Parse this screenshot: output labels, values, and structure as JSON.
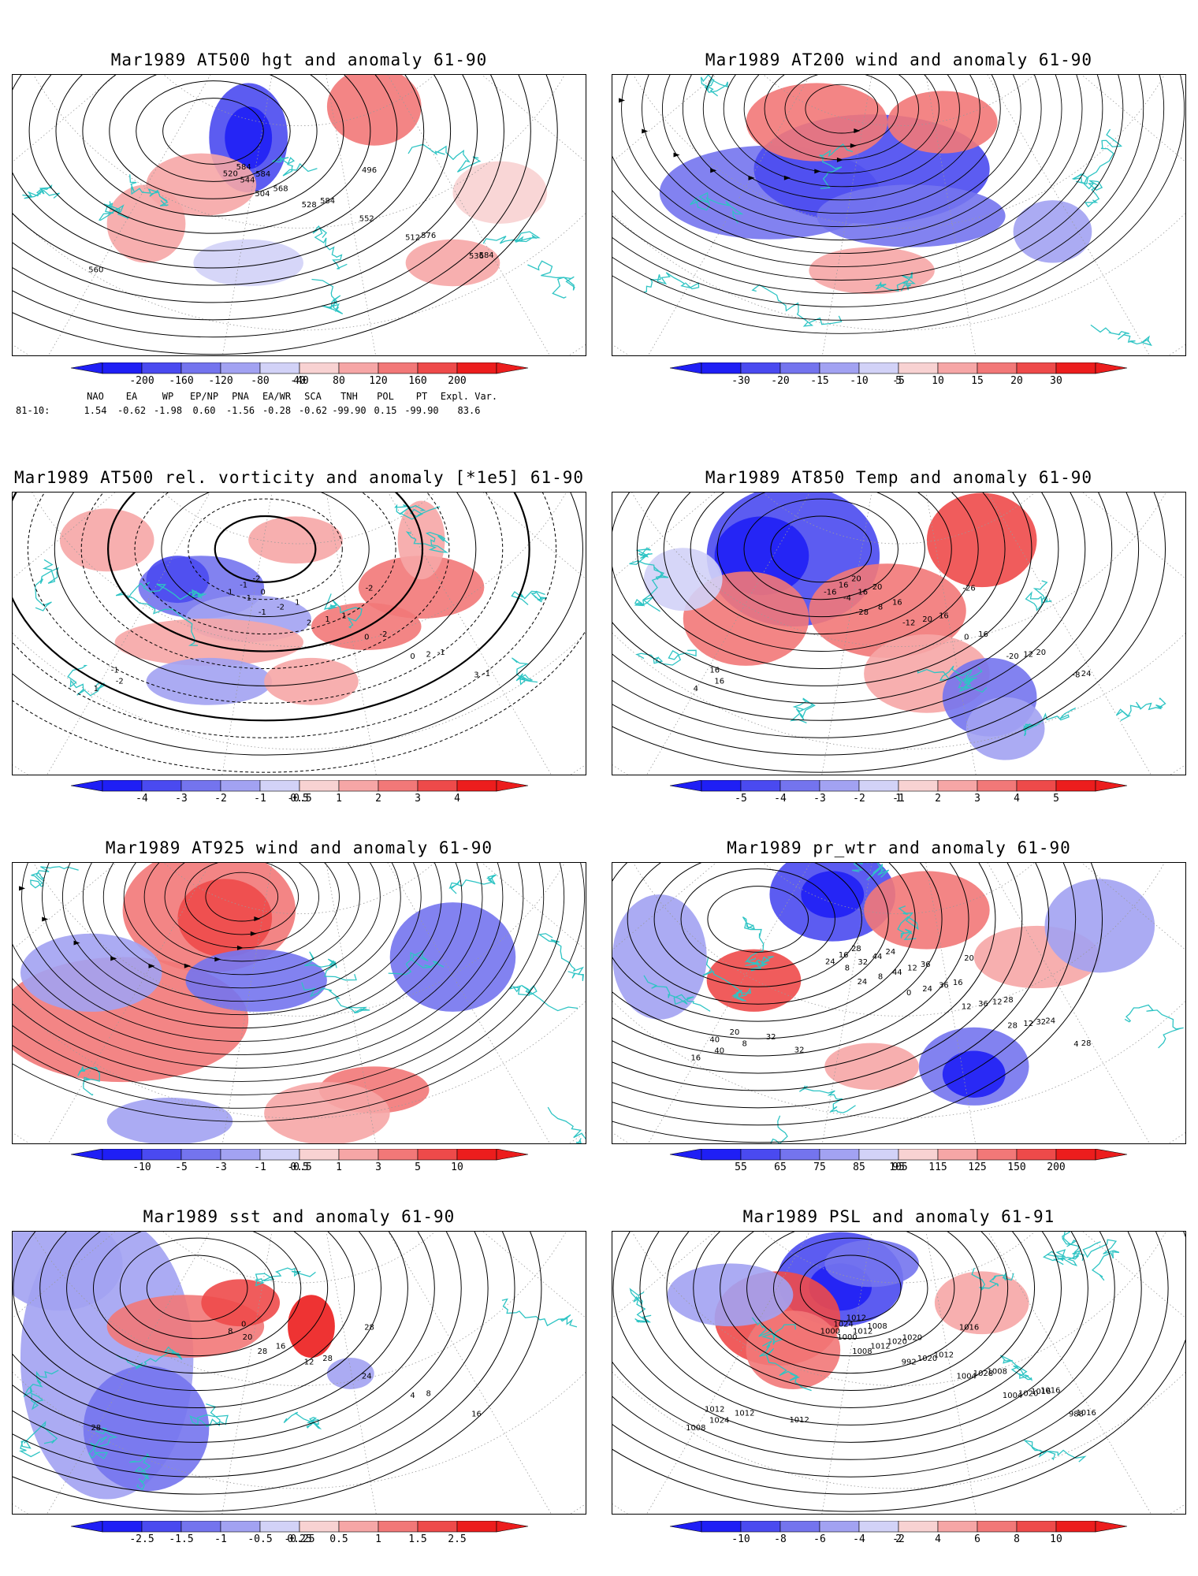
{
  "colors": {
    "coast": "#2ec4c4",
    "contour": "#000000",
    "frame": "#000000",
    "grid": "#9a9a9a"
  },
  "panels": [
    {
      "id": "hgt500",
      "title": "Mar1989 AT500 hgt and anomaly 61-90",
      "field": "contours",
      "contour_labels": [
        "496",
        "504",
        "512",
        "520",
        "528",
        "536",
        "544",
        "552",
        "560",
        "568",
        "576",
        "584",
        "584",
        "584",
        "584"
      ],
      "colorbar": {
        "ticks": [
          "-200",
          "-160",
          "-120",
          "-80",
          "-40",
          "40",
          "80",
          "120",
          "160",
          "200"
        ]
      }
    },
    {
      "id": "wind200",
      "title": "Mar1989 AT200 wind and anomaly 61-90",
      "field": "streamlines",
      "contour_labels": [],
      "colorbar": {
        "ticks": [
          "-30",
          "-20",
          "-15",
          "-10",
          "-5",
          "5",
          "10",
          "15",
          "20",
          "30"
        ]
      }
    },
    {
      "id": "vort500",
      "title": "Mar1989 AT500 rel. vorticity and anomaly [*1e5] 61-90",
      "field": "contours",
      "contour_labels": [
        "-2",
        "-1",
        "0",
        "1",
        "2",
        "3",
        "-1",
        "0",
        "1",
        "-2",
        "2",
        "-1",
        "1",
        "-1",
        "0",
        "-2",
        "-2",
        "1",
        "-1",
        "-2",
        "1",
        "-1"
      ],
      "colorbar": {
        "ticks": [
          "-4",
          "-3",
          "-2",
          "-1",
          "-0.5",
          "0.5",
          "1",
          "2",
          "3",
          "4"
        ]
      }
    },
    {
      "id": "temp850",
      "title": "Mar1989 AT850 Temp and anomaly 61-90",
      "field": "contours",
      "contour_labels": [
        "-26",
        "-28",
        "-20",
        "-16",
        "-12",
        "-8",
        "-4",
        "0",
        "4",
        "8",
        "12",
        "16",
        "20",
        "24",
        "16",
        "16",
        "16",
        "16",
        "20",
        "20",
        "16",
        "16",
        "20"
      ],
      "colorbar": {
        "ticks": [
          "-5",
          "-4",
          "-3",
          "-2",
          "-1",
          "1",
          "2",
          "3",
          "4",
          "5"
        ]
      }
    },
    {
      "id": "wind925",
      "title": "Mar1989 AT925 wind and anomaly 61-90",
      "field": "streamlines",
      "contour_labels": [],
      "colorbar": {
        "ticks": [
          "-10",
          "-5",
          "-3",
          "-1",
          "-0.5",
          "0.5",
          "1",
          "3",
          "5",
          "10"
        ]
      }
    },
    {
      "id": "prwtr",
      "title": "Mar1989 pr_wtr and anomaly 61-90",
      "field": "contours",
      "contour_labels": [
        "20",
        "24",
        "28",
        "24",
        "0",
        "4",
        "8",
        "12",
        "16",
        "8",
        "12",
        "16",
        "24",
        "28",
        "32",
        "36",
        "40",
        "44",
        "32",
        "28",
        "36",
        "40",
        "44",
        "12",
        "8",
        "12",
        "24",
        "32",
        "16",
        "20",
        "24",
        "28",
        "32",
        "36"
      ],
      "colorbar": {
        "ticks": [
          "55",
          "65",
          "75",
          "85",
          "95",
          "105",
          "115",
          "125",
          "150",
          "200"
        ]
      }
    },
    {
      "id": "sst",
      "title": "Mar1989 sst and anomaly 61-90",
      "field": "contours",
      "contour_labels": [
        "28",
        "28",
        "4",
        "8",
        "12",
        "16",
        "20",
        "24",
        "28",
        "16",
        "8",
        "0",
        "28"
      ],
      "colorbar": {
        "ticks": [
          "-2.5",
          "-1.5",
          "-1",
          "-0.5",
          "-0.25",
          "0.25",
          "0.5",
          "1",
          "1.5",
          "2.5"
        ]
      }
    },
    {
      "id": "psl",
      "title": "Mar1989 PSL and anomaly 61-91",
      "field": "contours",
      "contour_labels": [
        "1016",
        "1008",
        "1004",
        "1000",
        "992",
        "988",
        "1000",
        "1004",
        "1008",
        "1012",
        "1020",
        "1024",
        "1020",
        "1016",
        "1012",
        "1028",
        "1024",
        "1020",
        "1016",
        "1012",
        "1012",
        "1012",
        "1008",
        "1008",
        "1012",
        "1020",
        "1016",
        "1012"
      ],
      "colorbar": {
        "ticks": [
          "-10",
          "-8",
          "-6",
          "-4",
          "-2",
          "2",
          "4",
          "6",
          "8",
          "10"
        ]
      }
    }
  ],
  "index_table": {
    "row_label": "81-10:",
    "headers": [
      "NAO",
      "EA",
      "WP",
      "EP/NP",
      "PNA",
      "EA/WR",
      "SCA",
      "TNH",
      "POL",
      "PT",
      "Expl. Var."
    ],
    "values": [
      "1.54",
      "-0.62",
      "-1.98",
      "0.60",
      "-1.56",
      "-0.28",
      "-0.62",
      "-99.90",
      "0.15",
      "-99.90",
      "83.6"
    ]
  }
}
